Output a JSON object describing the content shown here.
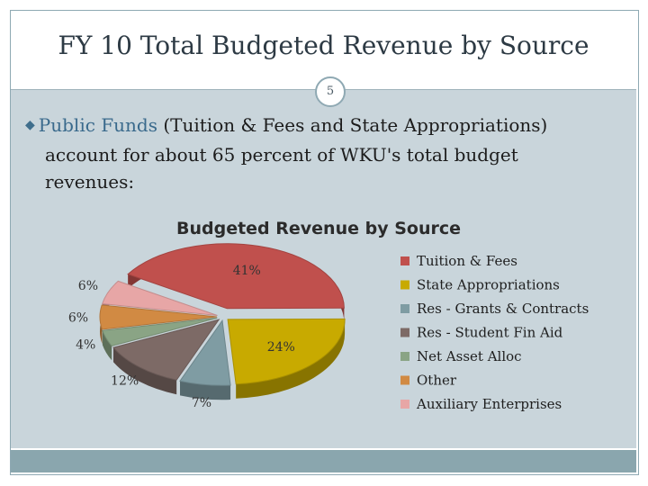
{
  "slide": {
    "title": "FY 10 Total Budgeted Revenue by Source",
    "page_number": "5",
    "bullet_highlight": "Public Funds",
    "bullet_rest_line1": " (Tuition & Fees and State Appropriations)",
    "bullet_line2": "account for about 65 percent of WKU's total budget",
    "bullet_line3": "revenues:"
  },
  "chart_data": {
    "type": "pie",
    "title": "Budgeted Revenue by Source",
    "legend_position": "right",
    "slices": [
      {
        "label": "Tuition & Fees",
        "value": 41,
        "display": "41%",
        "color": "#c0504d"
      },
      {
        "label": "State Appropriations",
        "value": 24,
        "display": "24%",
        "color": "#c8aa00"
      },
      {
        "label": "Res - Grants & Contracts",
        "value": 7,
        "display": "7%",
        "color": "#7f9ca3"
      },
      {
        "label": "Res - Student Fin Aid",
        "value": 12,
        "display": "12%",
        "color": "#7d6a66"
      },
      {
        "label": "Net Asset Alloc",
        "value": 4,
        "display": "4%",
        "color": "#8aa485"
      },
      {
        "label": "Other",
        "value": 6,
        "display": "6%",
        "color": "#d18a43"
      },
      {
        "label": "Auxiliary Enterprises",
        "value": 6,
        "display": "6%",
        "color": "#e7a6a6"
      }
    ]
  }
}
